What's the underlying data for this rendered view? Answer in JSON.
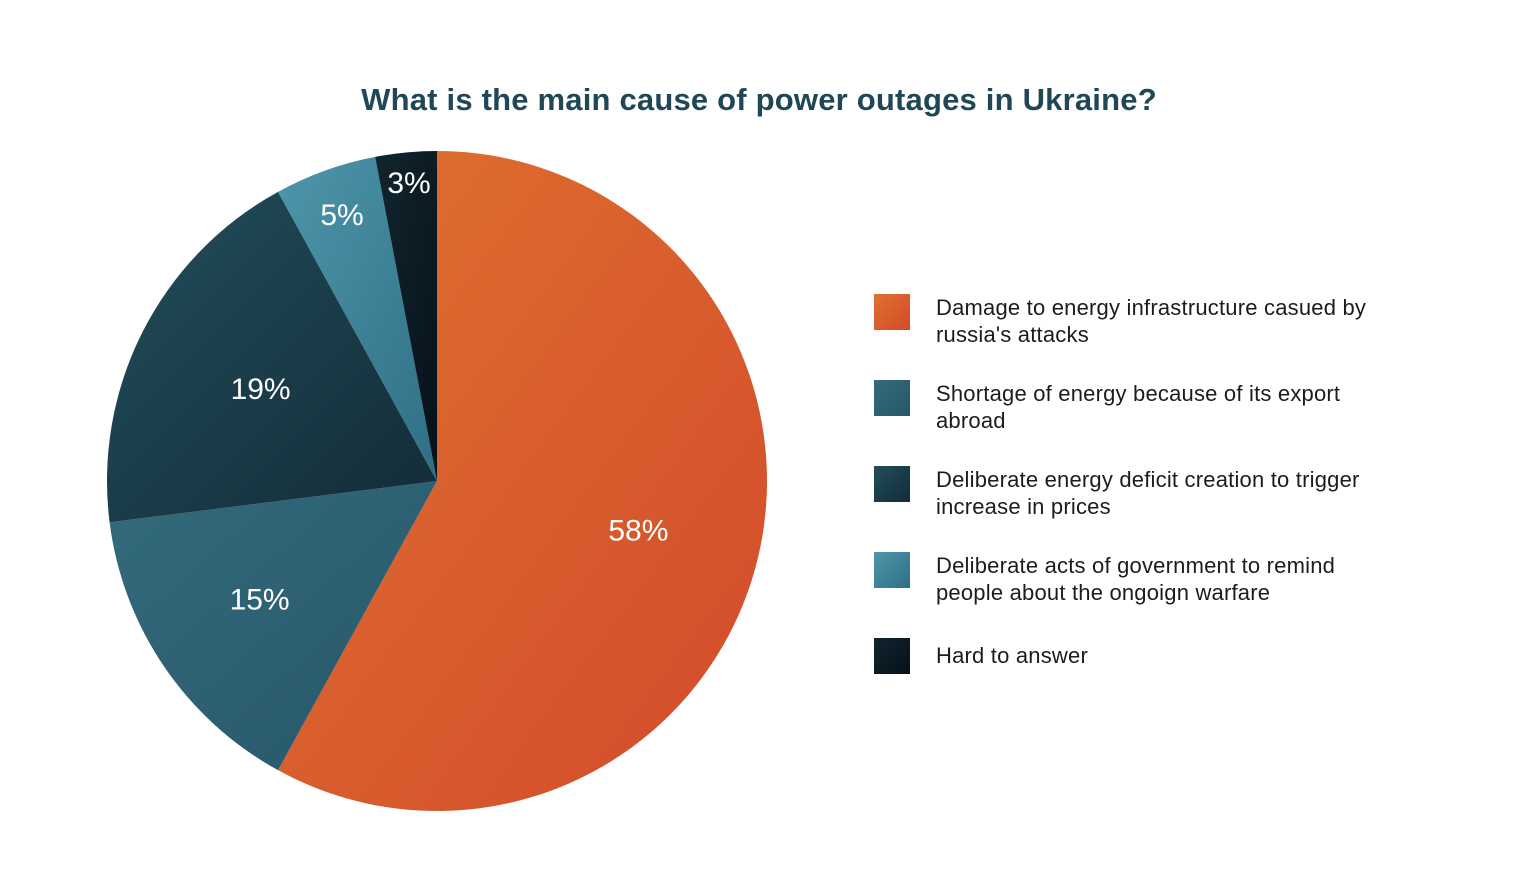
{
  "page": {
    "background": "#ffffff"
  },
  "chart_data": {
    "type": "pie",
    "title": "What is the main cause of power outages in Ukraine?",
    "title_color": "#1f4756",
    "legend_position": "right",
    "start_angle_deg": 0,
    "direction": "clockwise",
    "total": 100,
    "value_label_color": "#ffffff",
    "slices": [
      {
        "label": "Damage to energy infrastructure casued by russia's attacks",
        "lines": [
          "Damage to energy infrastructure",
          "casued by russia's attacks"
        ],
        "value": 58,
        "pct_label": "58%",
        "color_start": "#DE7230",
        "color_end": "#D34A2B",
        "label_radius": 0.63
      },
      {
        "label": "Shortage of energy because of its export abroad",
        "lines": [
          "Shortage of energy because of its",
          "export abroad"
        ],
        "value": 15,
        "pct_label": "15%",
        "color_start": "#336B7B",
        "color_end": "#27566A",
        "label_radius": 0.65
      },
      {
        "label": "Deliberate energy deficit creation to trigger increase in prices",
        "lines": [
          "Deliberate energy deficit creation to",
          "trigger increase in prices"
        ],
        "value": 19,
        "pct_label": "19%",
        "color_start": "#224E5C",
        "color_end": "#132B37",
        "label_radius": 0.6
      },
      {
        "label": "Deliberate acts of government to remind people about the ongoign warfare",
        "lines": [
          "Deliberate acts of government to remind",
          "people about the ongoign warfare"
        ],
        "value": 5,
        "pct_label": "5%",
        "color_start": "#4E96AB",
        "color_end": "#2F6F85",
        "label_radius": 0.85
      },
      {
        "label": "Hard to answer",
        "lines": [
          "Hard to answer"
        ],
        "value": 3,
        "pct_label": "3%",
        "color_start": "#11252F",
        "color_end": "#071119",
        "label_radius": 0.9
      }
    ]
  }
}
